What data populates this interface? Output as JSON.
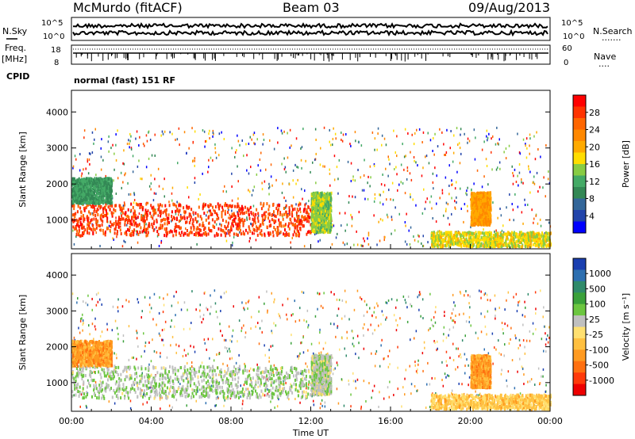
{
  "header": {
    "station": "McMurdo (fitACF)",
    "beam": "Beam 03",
    "date": "09/Aug/2013"
  },
  "side_labels": {
    "nsky": "N.Sky",
    "nsearch": "N.Search",
    "nsearch_dots": ".......",
    "freq": "Freq.",
    "freq_unit": "[MHz]",
    "nave": "Nave",
    "nave_dots": "....",
    "cpid": "CPID"
  },
  "small_panels": {
    "noise_left_ticks": [
      "10^5",
      "10^0"
    ],
    "noise_right_ticks": [
      "10^5",
      "10^0"
    ],
    "freq_left_ticks": [
      "18",
      "8"
    ],
    "nave_right_ticks": [
      "60",
      "0"
    ],
    "cpid_text": "normal (fast) 151 RF"
  },
  "chart_data": [
    {
      "type": "heatmap",
      "name": "power",
      "xlabel": "",
      "ylabel": "Slant Range [km]",
      "ylim": [
        200,
        4600
      ],
      "yticks": [
        1000,
        2000,
        3000,
        4000
      ],
      "xlim": [
        0,
        24
      ],
      "colorbar": {
        "label": "Power [dB]",
        "ticks": [
          "28",
          "24",
          "20",
          "16",
          "12",
          "8",
          "4"
        ],
        "colors": [
          "#ff0000",
          "#ff3300",
          "#ff6600",
          "#ff8800",
          "#ffaa00",
          "#ffdd00",
          "#88cc44",
          "#44aa66",
          "#338855",
          "#336699",
          "#2244aa",
          "#0000ff"
        ],
        "range": [
          0,
          30
        ]
      },
      "regions": [
        {
          "t0": 0.0,
          "t1": 12.0,
          "r0": 600,
          "r1": 1500,
          "value": 26
        },
        {
          "t0": 0.0,
          "t1": 2.0,
          "r0": 1500,
          "r1": 2200,
          "value": 10
        },
        {
          "t0": 12.0,
          "t1": 13.0,
          "r0": 700,
          "r1": 1800,
          "value": 14
        },
        {
          "t0": 18.0,
          "t1": 24.0,
          "r0": 300,
          "r1": 700,
          "value": 16
        },
        {
          "t0": 20.0,
          "t1": 21.0,
          "r0": 900,
          "r1": 1800,
          "value": 20
        }
      ]
    },
    {
      "type": "heatmap",
      "name": "velocity",
      "xlabel": "Time UT",
      "ylabel": "Slant Range [km]",
      "ylim": [
        200,
        4600
      ],
      "yticks": [
        1000,
        2000,
        3000,
        4000
      ],
      "xlim": [
        0,
        24
      ],
      "xticks": [
        "00:00",
        "04:00",
        "08:00",
        "12:00",
        "16:00",
        "20:00",
        "00:00"
      ],
      "colorbar": {
        "label": "Velocity [m s⁻¹]",
        "ticks": [
          "1000",
          "500",
          "100",
          "25",
          "-25",
          "-100",
          "-500",
          "-1000"
        ],
        "colors": [
          "#1a3fb0",
          "#2d6fb0",
          "#2f8a6a",
          "#3aa13a",
          "#6cc640",
          "#c0c0c0",
          "#ffe070",
          "#ffc040",
          "#ff9a20",
          "#ff7010",
          "#ff3a0a",
          "#ee0000"
        ],
        "range": [
          -1000,
          1000
        ]
      },
      "regions": [
        {
          "t0": 0.0,
          "t1": 12.0,
          "r0": 600,
          "r1": 1500,
          "value": 150
        },
        {
          "t0": 0.0,
          "t1": 2.0,
          "r0": 1500,
          "r1": 2200,
          "value": -400
        },
        {
          "t0": 12.0,
          "t1": 13.0,
          "r0": 700,
          "r1": 1800,
          "value": 120
        },
        {
          "t0": 18.0,
          "t1": 24.0,
          "r0": 300,
          "r1": 700,
          "value": -200
        },
        {
          "t0": 20.0,
          "t1": 21.0,
          "r0": 900,
          "r1": 1800,
          "value": -400
        }
      ]
    }
  ]
}
